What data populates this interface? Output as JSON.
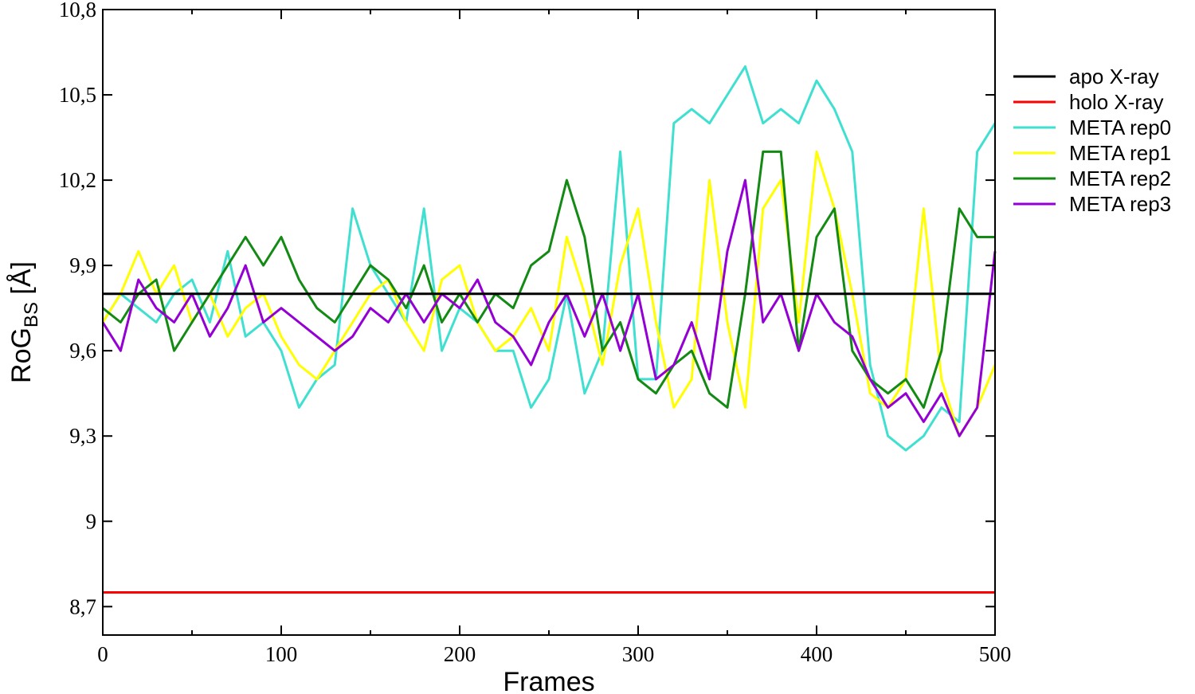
{
  "chart_data": {
    "type": "line",
    "xlabel": "Frames",
    "ylabel_main": "RoG",
    "ylabel_sub": "BS",
    "ylabel_unit": " [Å]",
    "xlim": [
      0,
      500
    ],
    "ylim": [
      8.6,
      10.8
    ],
    "x_ticks": [
      {
        "value": 0,
        "label": "0"
      },
      {
        "value": 100,
        "label": "100"
      },
      {
        "value": 200,
        "label": "200"
      },
      {
        "value": 300,
        "label": "300"
      },
      {
        "value": 400,
        "label": "400"
      },
      {
        "value": 500,
        "label": "500"
      }
    ],
    "y_ticks": [
      {
        "value": 8.7,
        "label": "8,7"
      },
      {
        "value": 9.0,
        "label": "9"
      },
      {
        "value": 9.3,
        "label": "9,3"
      },
      {
        "value": 9.6,
        "label": "9,6"
      },
      {
        "value": 9.9,
        "label": "9,9"
      },
      {
        "value": 10.2,
        "label": "10,2"
      },
      {
        "value": 10.5,
        "label": "10,5"
      },
      {
        "value": 10.8,
        "label": "10,8"
      }
    ],
    "grid": false,
    "legend_position": "right",
    "series": [
      {
        "name": "apo X-ray",
        "color": "#000000",
        "x": [
          0,
          500
        ],
        "y": [
          9.8,
          9.8
        ]
      },
      {
        "name": "holo X-ray",
        "color": "#ff0000",
        "x": [
          0,
          500
        ],
        "y": [
          8.75,
          8.75
        ]
      },
      {
        "name": "META rep0",
        "color": "#40e0d0",
        "x": [
          0,
          10,
          20,
          30,
          40,
          50,
          60,
          70,
          80,
          90,
          100,
          110,
          120,
          130,
          140,
          150,
          160,
          170,
          180,
          190,
          200,
          210,
          220,
          230,
          240,
          250,
          260,
          270,
          280,
          290,
          300,
          310,
          320,
          330,
          340,
          350,
          360,
          370,
          380,
          390,
          400,
          410,
          420,
          430,
          440,
          450,
          460,
          470,
          480,
          490,
          500
        ],
        "y": [
          9.7,
          9.8,
          9.75,
          9.7,
          9.8,
          9.85,
          9.7,
          9.95,
          9.65,
          9.7,
          9.6,
          9.4,
          9.5,
          9.55,
          10.1,
          9.9,
          9.8,
          9.7,
          10.1,
          9.6,
          9.75,
          9.7,
          9.6,
          9.6,
          9.4,
          9.5,
          9.8,
          9.45,
          9.6,
          10.3,
          9.5,
          9.5,
          10.4,
          10.45,
          10.4,
          10.5,
          10.6,
          10.4,
          10.45,
          10.4,
          10.55,
          10.45,
          10.3,
          9.55,
          9.3,
          9.25,
          9.3,
          9.4,
          9.35,
          10.3,
          10.4
        ]
      },
      {
        "name": "META rep1",
        "color": "#ffff00",
        "x": [
          0,
          10,
          20,
          30,
          40,
          50,
          60,
          70,
          80,
          90,
          100,
          110,
          120,
          130,
          140,
          150,
          160,
          170,
          180,
          190,
          200,
          210,
          220,
          230,
          240,
          250,
          260,
          270,
          280,
          290,
          300,
          310,
          320,
          330,
          340,
          350,
          360,
          370,
          380,
          390,
          400,
          410,
          420,
          430,
          440,
          450,
          460,
          470,
          480,
          490,
          500
        ],
        "y": [
          9.7,
          9.8,
          9.95,
          9.8,
          9.9,
          9.7,
          9.8,
          9.65,
          9.75,
          9.8,
          9.65,
          9.55,
          9.5,
          9.6,
          9.7,
          9.8,
          9.85,
          9.7,
          9.6,
          9.85,
          9.9,
          9.7,
          9.6,
          9.65,
          9.75,
          9.6,
          10.0,
          9.8,
          9.55,
          9.9,
          10.1,
          9.7,
          9.4,
          9.5,
          10.2,
          9.7,
          9.4,
          10.1,
          10.2,
          9.7,
          10.3,
          10.1,
          9.8,
          9.45,
          9.4,
          9.5,
          10.1,
          9.5,
          9.3,
          9.4,
          9.55
        ]
      },
      {
        "name": "META rep2",
        "color": "#138a13",
        "x": [
          0,
          10,
          20,
          30,
          40,
          50,
          60,
          70,
          80,
          90,
          100,
          110,
          120,
          130,
          140,
          150,
          160,
          170,
          180,
          190,
          200,
          210,
          220,
          230,
          240,
          250,
          260,
          270,
          280,
          290,
          300,
          310,
          320,
          330,
          340,
          350,
          360,
          370,
          380,
          390,
          400,
          410,
          420,
          430,
          440,
          450,
          460,
          470,
          480,
          490,
          500
        ],
        "y": [
          9.75,
          9.7,
          9.8,
          9.85,
          9.6,
          9.7,
          9.8,
          9.9,
          10.0,
          9.9,
          10.0,
          9.85,
          9.75,
          9.7,
          9.8,
          9.9,
          9.85,
          9.75,
          9.9,
          9.7,
          9.8,
          9.7,
          9.8,
          9.75,
          9.9,
          9.95,
          10.2,
          10.0,
          9.6,
          9.7,
          9.5,
          9.45,
          9.55,
          9.6,
          9.45,
          9.4,
          9.8,
          10.3,
          10.3,
          9.6,
          10.0,
          10.1,
          9.6,
          9.5,
          9.45,
          9.5,
          9.4,
          9.6,
          10.1,
          10.0,
          10.0
        ]
      },
      {
        "name": "META rep3",
        "color": "#9400d3",
        "x": [
          0,
          10,
          20,
          30,
          40,
          50,
          60,
          70,
          80,
          90,
          100,
          110,
          120,
          130,
          140,
          150,
          160,
          170,
          180,
          190,
          200,
          210,
          220,
          230,
          240,
          250,
          260,
          270,
          280,
          290,
          300,
          310,
          320,
          330,
          340,
          350,
          360,
          370,
          380,
          390,
          400,
          410,
          420,
          430,
          440,
          450,
          460,
          470,
          480,
          490,
          500
        ],
        "y": [
          9.7,
          9.6,
          9.85,
          9.75,
          9.7,
          9.8,
          9.65,
          9.75,
          9.9,
          9.7,
          9.75,
          9.7,
          9.65,
          9.6,
          9.65,
          9.75,
          9.7,
          9.8,
          9.7,
          9.8,
          9.75,
          9.85,
          9.7,
          9.65,
          9.55,
          9.7,
          9.8,
          9.65,
          9.8,
          9.6,
          9.8,
          9.5,
          9.55,
          9.7,
          9.5,
          9.95,
          10.2,
          9.7,
          9.8,
          9.6,
          9.8,
          9.7,
          9.65,
          9.5,
          9.4,
          9.45,
          9.35,
          9.45,
          9.3,
          9.4,
          9.95
        ]
      }
    ]
  }
}
